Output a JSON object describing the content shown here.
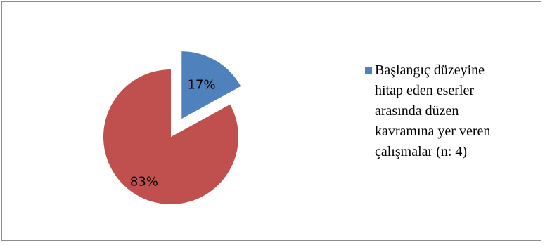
{
  "chart_data": {
    "type": "pie",
    "title": "",
    "slices": [
      {
        "label": "17%",
        "value": 17,
        "color": "#4f81bd",
        "exploded": true
      },
      {
        "label": "83%",
        "value": 83,
        "color": "#c0504d",
        "exploded": false
      }
    ],
    "legend": {
      "position": "right",
      "entries": [
        {
          "text": "Başlangıç düzeyine\nhitap eden eserler\narasında düzen\nkavramına yer veren\nçalışmalar (n: 4)",
          "color": "#4f81bd"
        }
      ]
    }
  }
}
